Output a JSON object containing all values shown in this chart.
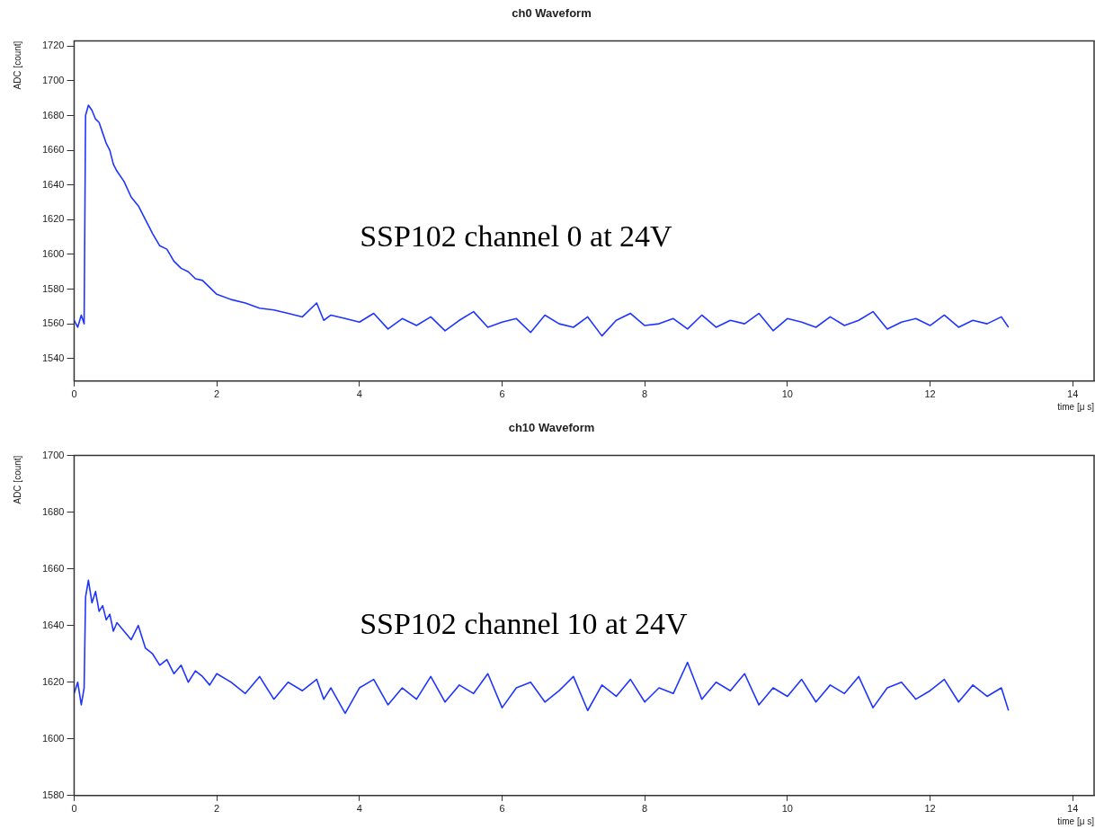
{
  "chart_data": [
    {
      "type": "line",
      "title": "ch0 Waveform",
      "xlabel": "time [μ s]",
      "ylabel": "ADC [count]",
      "annotations": [
        "SSP102 channel 0 at 24V"
      ],
      "xlim": [
        0,
        14.3
      ],
      "xticks": [
        0,
        2,
        4,
        6,
        8,
        10,
        12,
        14
      ],
      "ylim": [
        1527,
        1723
      ],
      "yticks": [
        1540,
        1560,
        1580,
        1600,
        1620,
        1640,
        1660,
        1680,
        1700,
        1720
      ],
      "grid": false,
      "legend": false,
      "marker": "none",
      "line_style": "solid",
      "series": [
        {
          "color": "#1f35ff",
          "x": [
            0,
            0.05,
            0.1,
            0.14,
            0.16,
            0.2,
            0.25,
            0.3,
            0.35,
            0.4,
            0.45,
            0.5,
            0.55,
            0.6,
            0.7,
            0.8,
            0.9,
            1.0,
            1.1,
            1.2,
            1.3,
            1.4,
            1.5,
            1.6,
            1.7,
            1.8,
            1.9,
            2.0,
            2.2,
            2.4,
            2.6,
            2.8,
            3.0,
            3.2,
            3.4,
            3.5,
            3.6,
            3.8,
            4.0,
            4.2,
            4.4,
            4.6,
            4.8,
            5.0,
            5.2,
            5.4,
            5.6,
            5.8,
            6.0,
            6.2,
            6.4,
            6.6,
            6.8,
            7.0,
            7.2,
            7.4,
            7.6,
            7.8,
            8.0,
            8.2,
            8.4,
            8.6,
            8.8,
            9.0,
            9.2,
            9.4,
            9.6,
            9.8,
            10.0,
            10.2,
            10.4,
            10.6,
            10.8,
            11.0,
            11.2,
            11.4,
            11.6,
            11.8,
            12.0,
            12.2,
            12.4,
            12.6,
            12.8,
            13.0,
            13.1
          ],
          "values": [
            1562,
            1558,
            1565,
            1560,
            1680,
            1686,
            1683,
            1678,
            1676,
            1670,
            1664,
            1660,
            1652,
            1648,
            1642,
            1633,
            1628,
            1620,
            1612,
            1605,
            1603,
            1596,
            1592,
            1590,
            1586,
            1585,
            1581,
            1577,
            1574,
            1572,
            1569,
            1568,
            1566,
            1564,
            1572,
            1562,
            1565,
            1563,
            1561,
            1566,
            1557,
            1563,
            1559,
            1564,
            1556,
            1562,
            1567,
            1558,
            1561,
            1563,
            1555,
            1565,
            1560,
            1558,
            1564,
            1553,
            1562,
            1566,
            1559,
            1560,
            1563,
            1557,
            1565,
            1558,
            1562,
            1560,
            1566,
            1556,
            1563,
            1561,
            1558,
            1564,
            1559,
            1562,
            1567,
            1557,
            1561,
            1563,
            1559,
            1565,
            1558,
            1562,
            1560,
            1564,
            1558
          ]
        }
      ]
    },
    {
      "type": "line",
      "title": "ch10 Waveform",
      "xlabel": "time [μ s]",
      "ylabel": "ADC [count]",
      "annotations": [
        "SSP102 channel 10 at 24V"
      ],
      "xlim": [
        0,
        14.3
      ],
      "xticks": [
        0,
        2,
        4,
        6,
        8,
        10,
        12,
        14
      ],
      "ylim": [
        1580,
        1700
      ],
      "yticks": [
        1580,
        1600,
        1620,
        1640,
        1660,
        1680,
        1700
      ],
      "grid": false,
      "legend": false,
      "marker": "none",
      "line_style": "solid",
      "series": [
        {
          "color": "#1f35ff",
          "x": [
            0,
            0.05,
            0.1,
            0.14,
            0.16,
            0.2,
            0.25,
            0.3,
            0.35,
            0.4,
            0.45,
            0.5,
            0.55,
            0.6,
            0.7,
            0.8,
            0.9,
            1.0,
            1.1,
            1.2,
            1.3,
            1.4,
            1.5,
            1.6,
            1.7,
            1.8,
            1.9,
            2.0,
            2.2,
            2.4,
            2.6,
            2.8,
            3.0,
            3.2,
            3.4,
            3.5,
            3.6,
            3.8,
            4.0,
            4.2,
            4.4,
            4.6,
            4.8,
            5.0,
            5.2,
            5.4,
            5.6,
            5.8,
            6.0,
            6.2,
            6.4,
            6.6,
            6.8,
            7.0,
            7.2,
            7.4,
            7.6,
            7.8,
            8.0,
            8.2,
            8.4,
            8.6,
            8.8,
            9.0,
            9.2,
            9.4,
            9.6,
            9.8,
            10.0,
            10.2,
            10.4,
            10.6,
            10.8,
            11.0,
            11.2,
            11.4,
            11.6,
            11.8,
            12.0,
            12.2,
            12.4,
            12.6,
            12.8,
            13.0,
            13.1
          ],
          "values": [
            1616,
            1620,
            1612,
            1618,
            1650,
            1656,
            1648,
            1652,
            1645,
            1647,
            1642,
            1644,
            1638,
            1641,
            1638,
            1635,
            1640,
            1632,
            1630,
            1626,
            1628,
            1623,
            1626,
            1620,
            1624,
            1622,
            1619,
            1623,
            1620,
            1616,
            1622,
            1614,
            1620,
            1617,
            1621,
            1614,
            1618,
            1609,
            1618,
            1621,
            1612,
            1618,
            1614,
            1622,
            1613,
            1619,
            1616,
            1623,
            1611,
            1618,
            1620,
            1613,
            1617,
            1622,
            1610,
            1619,
            1615,
            1621,
            1613,
            1618,
            1616,
            1627,
            1614,
            1620,
            1617,
            1623,
            1612,
            1618,
            1615,
            1621,
            1613,
            1619,
            1616,
            1622,
            1611,
            1618,
            1620,
            1614,
            1617,
            1621,
            1613,
            1619,
            1615,
            1618,
            1610
          ]
        }
      ]
    }
  ]
}
